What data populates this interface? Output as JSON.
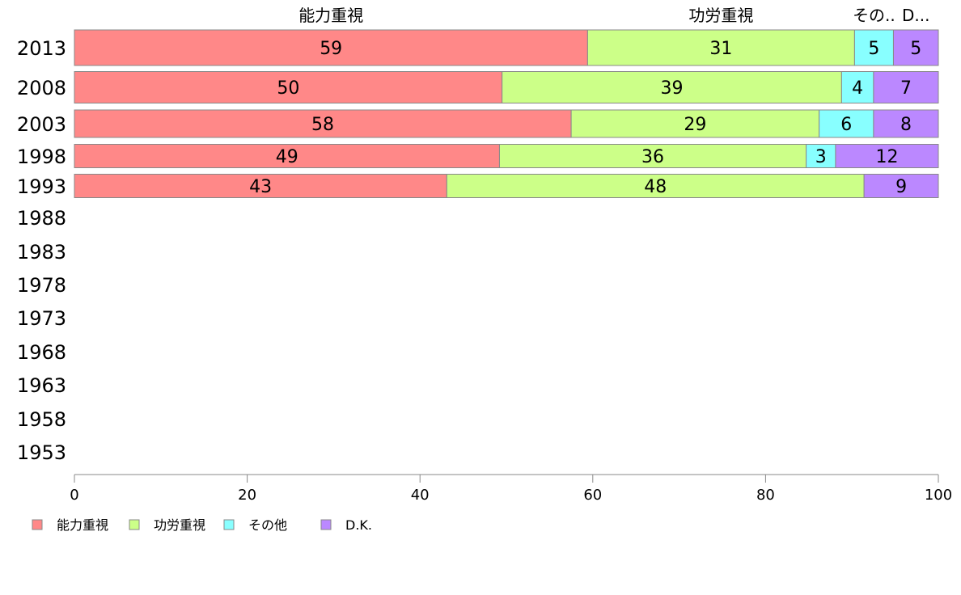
{
  "chart_data": {
    "type": "bar",
    "orientation": "horizontal",
    "stacked": true,
    "categories": [
      "2013",
      "2008",
      "2003",
      "1998",
      "1993",
      "1988",
      "1983",
      "1978",
      "1973",
      "1968",
      "1963",
      "1958",
      "1953"
    ],
    "series": [
      {
        "name": "能力重視",
        "color": "#FF8888",
        "values": [
          59.4,
          49.5,
          57.5,
          49.2,
          43.1,
          null,
          null,
          null,
          null,
          null,
          null,
          null,
          null
        ],
        "labels": [
          "59",
          "50",
          "58",
          "49",
          "43",
          "",
          "",
          "",
          "",
          "",
          "",
          "",
          ""
        ]
      },
      {
        "name": "功労重視",
        "color": "#CCFF88",
        "values": [
          30.9,
          39.3,
          28.7,
          35.5,
          48.3,
          null,
          null,
          null,
          null,
          null,
          null,
          null,
          null
        ],
        "labels": [
          "31",
          "39",
          "29",
          "36",
          "48",
          "",
          "",
          "",
          "",
          "",
          "",
          "",
          ""
        ]
      },
      {
        "name": "その他",
        "color": "#88FFFF",
        "values": [
          4.5,
          3.7,
          6.3,
          3.4,
          0,
          null,
          null,
          null,
          null,
          null,
          null,
          null,
          null
        ],
        "labels": [
          "5",
          "4",
          "6",
          "3",
          "",
          "",
          "",
          "",
          "",
          "",
          "",
          "",
          ""
        ]
      },
      {
        "name": "D.K.",
        "color": "#BB88FF",
        "values": [
          5.2,
          7.5,
          7.5,
          11.9,
          8.6,
          null,
          null,
          null,
          null,
          null,
          null,
          null,
          null
        ],
        "labels": [
          "5",
          "7",
          "8",
          "12",
          "9",
          "",
          "",
          "",
          "",
          "",
          "",
          "",
          ""
        ]
      }
    ],
    "top_labels": [
      "能力重視",
      "功労重視",
      "その..",
      "D..."
    ],
    "xlim": [
      0,
      100
    ],
    "xticks": [
      "0",
      "20",
      "40",
      "60",
      "80",
      "100"
    ],
    "legend": {
      "position": "bottom-left",
      "items": [
        "能力重視",
        "功労重視",
        "その他",
        "D.K."
      ]
    },
    "grid": false
  }
}
